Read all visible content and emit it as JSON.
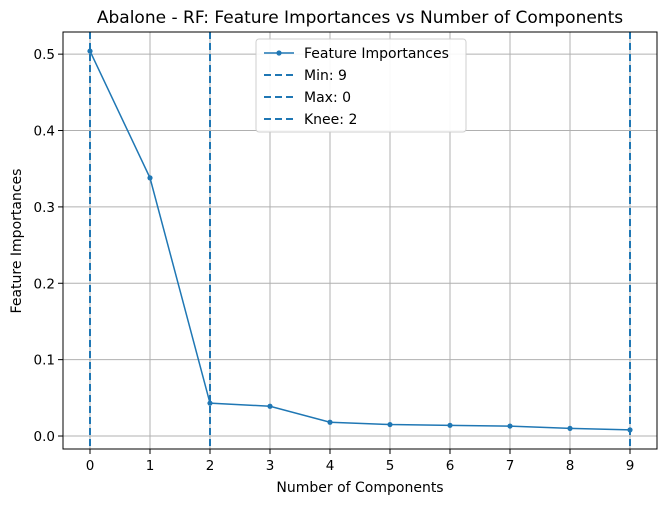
{
  "chart_data": {
    "type": "line",
    "title": "Abalone - RF: Feature Importances vs Number of Components",
    "xlabel": "Number of Components",
    "ylabel": "Feature Importances",
    "x": [
      0,
      1,
      2,
      3,
      4,
      5,
      6,
      7,
      8,
      9
    ],
    "series": [
      {
        "name": "Feature Importances",
        "values": [
          0.504,
          0.338,
          0.043,
          0.039,
          0.018,
          0.015,
          0.014,
          0.013,
          0.01,
          0.008
        ],
        "color": "#1f77b4"
      }
    ],
    "vlines": [
      {
        "label": "Min: 9",
        "x": 9,
        "color": "#1f77b4"
      },
      {
        "label": "Max: 0",
        "x": 0,
        "color": "#1f77b4"
      },
      {
        "label": "Knee: 2",
        "x": 2,
        "color": "#1f77b4"
      }
    ],
    "xlim": [
      -0.45,
      9.45
    ],
    "ylim": [
      -0.017,
      0.529
    ],
    "xticks": [
      "0",
      "1",
      "2",
      "3",
      "4",
      "5",
      "6",
      "7",
      "8",
      "9"
    ],
    "yticks": [
      "0.0",
      "0.1",
      "0.2",
      "0.3",
      "0.4",
      "0.5"
    ],
    "grid": true,
    "legend_position": "top-center"
  }
}
